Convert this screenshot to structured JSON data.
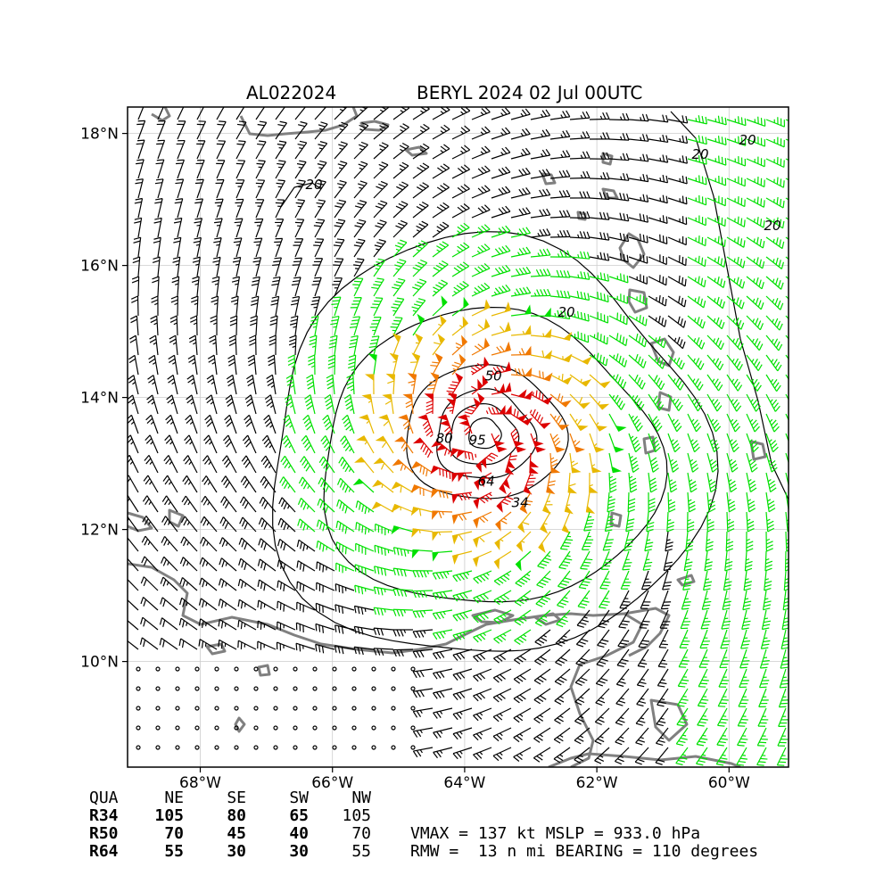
{
  "header": {
    "storm_id": "AL022024",
    "storm_title": "BERYL 2024 02 Jul 00UTC"
  },
  "map": {
    "lat_ticks": [
      "18°N",
      "16°N",
      "14°N",
      "12°N",
      "10°N"
    ],
    "lon_ticks": [
      "68°W",
      "66°W",
      "64°W",
      "62°W",
      "60°W"
    ],
    "lat_range": [
      8.4,
      18.4
    ],
    "lon_range": [
      -69.1,
      -59.1
    ],
    "center": {
      "lon": -63.7,
      "lat": 13.45
    },
    "contour_labels": {
      "c20a": "20",
      "c20b": "20",
      "c20c": "20",
      "c20d": "20",
      "c20e": "20",
      "c34": "34",
      "c50": "50",
      "c64": "64",
      "c80": "80",
      "c95": "95"
    },
    "colors": {
      "barb_default": "#000000",
      "barb_34": "#00e000",
      "barb_50": "#e8b800",
      "barb_64": "#f07800",
      "barb_80": "#dd0000",
      "coastline": "#808080",
      "grid": "#cccccc"
    }
  },
  "wind_radii": {
    "headers": [
      "QUA",
      "NE",
      "SE",
      "SW",
      "NW"
    ],
    "rows": [
      {
        "label": "R34",
        "values": [
          "105",
          "80",
          "65",
          "105"
        ]
      },
      {
        "label": "R50",
        "values": [
          "70",
          "45",
          "40",
          "70"
        ]
      },
      {
        "label": "R64",
        "values": [
          "55",
          "30",
          "30",
          "55"
        ]
      }
    ]
  },
  "stats": {
    "line1": "VMAX = 137 kt MSLP = 933.0 hPa",
    "line2": "RMW =  13 n mi BEARING = 110 degrees"
  }
}
